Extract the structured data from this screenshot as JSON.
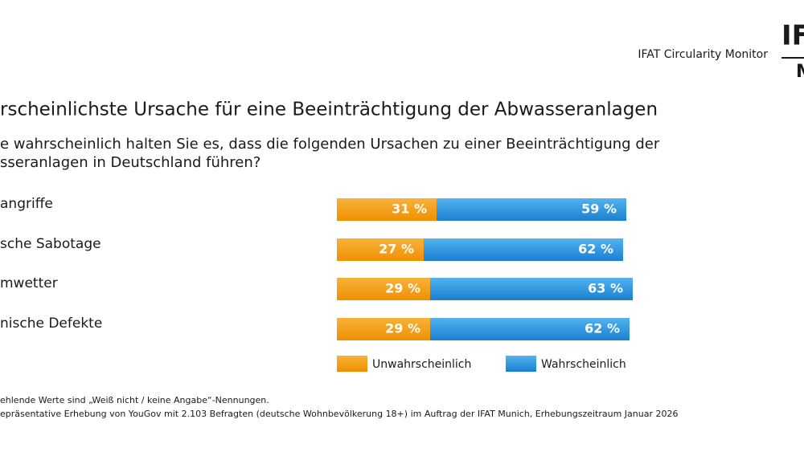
{
  "header": "IFAT Circularity Monitor",
  "logo": {
    "top": "IF",
    "bottom": "M"
  },
  "chart_data": {
    "type": "stacked-hbar",
    "title": "rscheinlichste Ursache für eine Beeinträchtigung der Abwasseranlagen",
    "subtitle": [
      "e wahrscheinlich halten Sie es, dass die folgenden Ursachen zu einer Beeinträchtigung der",
      "sseranlagen in Deutschland führen?"
    ],
    "categories": [
      "angriffe",
      "sche Sabotage",
      "mwetter",
      "nische Defekte"
    ],
    "series": [
      {
        "name": "Unwahrscheinlich",
        "color": "#f39a10",
        "values": [
          31,
          27,
          29,
          29
        ],
        "value_labels": [
          "31 %",
          "27 %",
          "29 %",
          "29 %"
        ]
      },
      {
        "name": "Wahrscheinlich",
        "color": "#2a8fdc",
        "values": [
          59,
          62,
          63,
          62
        ],
        "value_labels": [
          "59 %",
          "62 %",
          "63 %",
          "62 %"
        ]
      }
    ],
    "xlim": [
      0,
      100
    ],
    "notes": [
      "ehlende Werte sind „Weiß nicht / keine Angabe“-Nennungen.",
      "epräsentative Erhebung von YouGov mit 2.103 Befragten (deutsche Wohnbevölkerung 18+) im Auftrag der IFAT Munich, Erhebungszeitraum Januar 2026"
    ]
  }
}
